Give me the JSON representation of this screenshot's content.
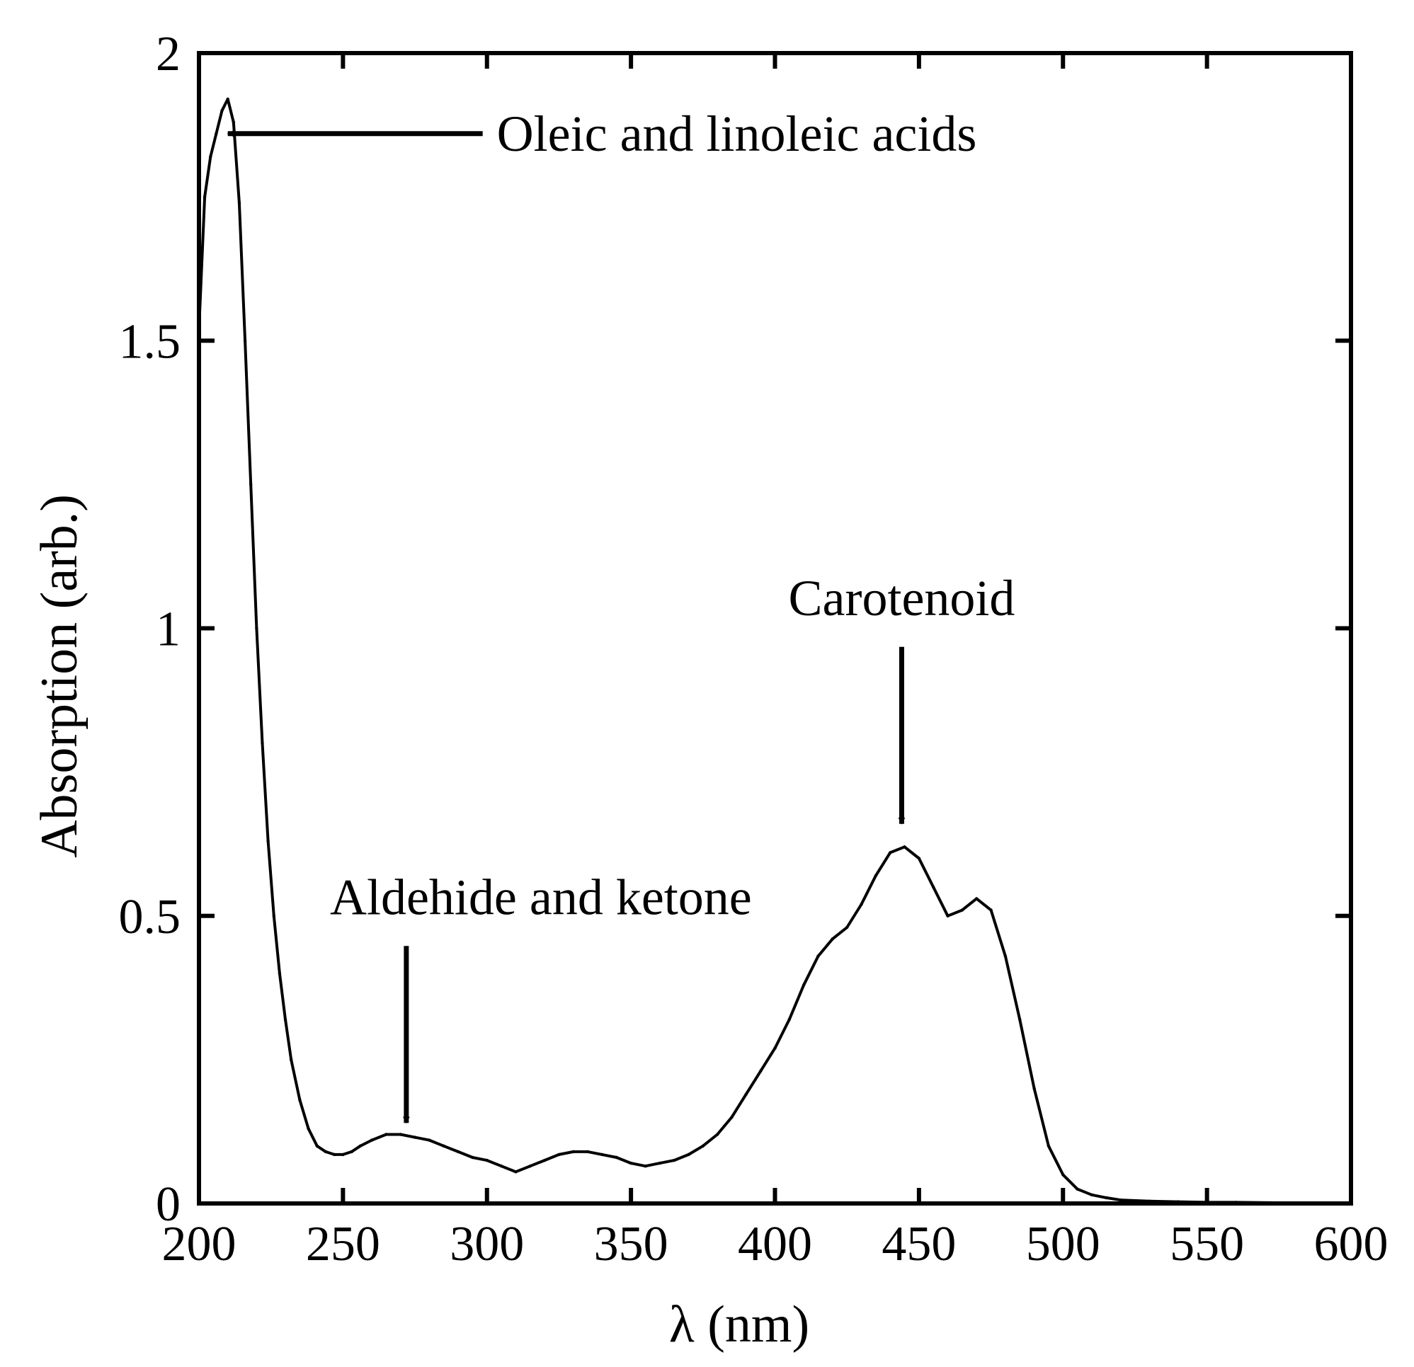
{
  "chart_data": {
    "type": "line",
    "title": "",
    "xlabel": "λ (nm)",
    "ylabel": "Absorption (arb.)",
    "xlim": [
      200,
      600
    ],
    "ylim": [
      0,
      2
    ],
    "x_ticks": [
      200,
      250,
      300,
      350,
      400,
      450,
      500,
      550,
      600
    ],
    "y_ticks": [
      0,
      0.5,
      1,
      1.5,
      2
    ],
    "x_tick_labels": [
      "200",
      "250",
      "300",
      "350",
      "400",
      "450",
      "500",
      "550",
      "600"
    ],
    "y_tick_labels": [
      "0",
      "0.5",
      "1",
      "1.5",
      "2"
    ],
    "grid": false,
    "legend": "none",
    "series": [
      {
        "color": "#000000",
        "x": [
          200,
          202,
          204,
          206,
          208,
          210,
          212,
          214,
          216,
          218,
          220,
          222,
          224,
          226,
          228,
          230,
          232,
          235,
          238,
          241,
          244,
          247,
          250,
          253,
          256,
          260,
          265,
          270,
          275,
          280,
          285,
          290,
          295,
          300,
          305,
          310,
          315,
          320,
          325,
          330,
          335,
          340,
          345,
          350,
          355,
          360,
          365,
          370,
          375,
          380,
          385,
          390,
          395,
          400,
          405,
          410,
          415,
          420,
          425,
          430,
          435,
          440,
          445,
          450,
          455,
          460,
          465,
          470,
          475,
          480,
          485,
          490,
          495,
          500,
          505,
          510,
          515,
          520,
          530,
          540,
          550,
          560,
          580,
          600
        ],
        "y": [
          1.52,
          1.75,
          1.82,
          1.86,
          1.9,
          1.92,
          1.88,
          1.74,
          1.5,
          1.25,
          1.0,
          0.8,
          0.63,
          0.5,
          0.4,
          0.32,
          0.25,
          0.18,
          0.13,
          0.1,
          0.09,
          0.085,
          0.085,
          0.09,
          0.1,
          0.11,
          0.12,
          0.12,
          0.115,
          0.11,
          0.1,
          0.09,
          0.08,
          0.075,
          0.065,
          0.055,
          0.065,
          0.075,
          0.085,
          0.09,
          0.09,
          0.085,
          0.08,
          0.07,
          0.065,
          0.07,
          0.075,
          0.085,
          0.1,
          0.12,
          0.15,
          0.19,
          0.23,
          0.27,
          0.32,
          0.38,
          0.43,
          0.46,
          0.48,
          0.52,
          0.57,
          0.61,
          0.62,
          0.6,
          0.55,
          0.5,
          0.51,
          0.53,
          0.51,
          0.43,
          0.32,
          0.2,
          0.1,
          0.05,
          0.025,
          0.015,
          0.01,
          0.006,
          0.004,
          0.003,
          0.002,
          0.002,
          0.001,
          0.001
        ]
      }
    ],
    "annotations": [
      {
        "text": "Oleic and linoleic acids",
        "arrow_to": [
          210,
          1.86
        ],
        "direction": "left"
      },
      {
        "text": "Aldehide and ketone",
        "arrow_to": [
          272,
          0.14
        ],
        "direction": "down"
      },
      {
        "text": "Carotenoid",
        "arrow_to": [
          444,
          0.66
        ],
        "direction": "down"
      }
    ]
  }
}
